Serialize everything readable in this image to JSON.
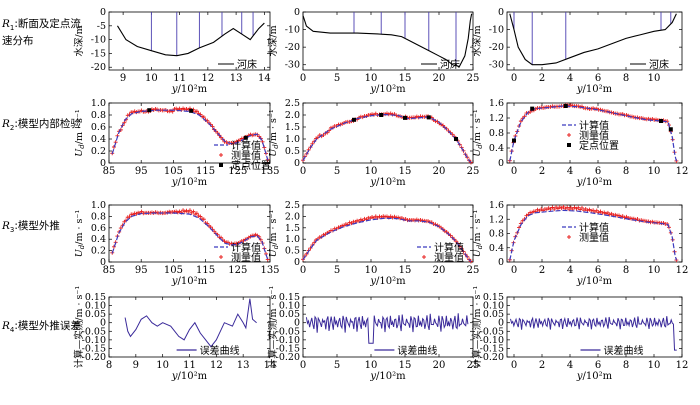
{
  "rows": [
    {
      "sym": "R",
      "sub": "1",
      "label": "断面及定点流速分布"
    },
    {
      "sym": "R",
      "sub": "2",
      "label": "模型内部检验"
    },
    {
      "sym": "R",
      "sub": "3",
      "label": "模型外推"
    },
    {
      "sym": "R",
      "sub": "4",
      "label": "模型外推误差"
    }
  ],
  "legend": {
    "riverbed": "河床",
    "calc": "计算值",
    "meas": "测量值",
    "station": "定点位置",
    "error": "误差曲线"
  },
  "axis_labels": {
    "x": "y/10²m",
    "depth": "水深/m",
    "velocity": "U_d/m · s⁻¹",
    "error": "计算—实测/m · s⁻¹"
  },
  "colors": {
    "calc_line": "#3b3bbf",
    "meas_marker": "#e8201f",
    "station_marker": "#000000",
    "riverbed_line": "#000000",
    "error_line": "#3a2a9a",
    "station_vline": "#4a3fb0"
  },
  "chart_data": [
    {
      "id": "r1c1",
      "type": "line",
      "role": "section",
      "ylabel": "水深/m",
      "xlabel": "y/10²m",
      "xlim": [
        8.5,
        14.2
      ],
      "ylim": [
        -21,
        0
      ],
      "xticks": [
        9,
        10,
        11,
        12,
        13,
        14
      ],
      "yticks": [
        -20,
        -15,
        -10,
        -5,
        0
      ],
      "legend": "河床",
      "bed": [
        [
          8.8,
          -5
        ],
        [
          9.1,
          -10
        ],
        [
          9.5,
          -12.5
        ],
        [
          10,
          -14
        ],
        [
          10.5,
          -15.5
        ],
        [
          10.9,
          -15.8
        ],
        [
          11.3,
          -15
        ],
        [
          11.7,
          -13
        ],
        [
          12.2,
          -11
        ],
        [
          12.6,
          -8
        ],
        [
          12.9,
          -6
        ],
        [
          13.2,
          -8
        ],
        [
          13.5,
          -10
        ],
        [
          13.8,
          -6
        ],
        [
          14,
          -4
        ]
      ],
      "stations": [
        10.0,
        10.9,
        11.7,
        12.5,
        13.2,
        13.6
      ]
    },
    {
      "id": "r1c2",
      "type": "line",
      "role": "section",
      "ylabel": "水深/m",
      "xlabel": "y/10²m",
      "xlim": [
        0,
        25
      ],
      "ylim": [
        -33,
        0
      ],
      "xticks": [
        0,
        5,
        10,
        15,
        20,
        25
      ],
      "yticks": [
        -30,
        -20,
        -10,
        0
      ],
      "legend": "河床",
      "bed": [
        [
          0,
          -2
        ],
        [
          0.5,
          -8
        ],
        [
          1.5,
          -11
        ],
        [
          4,
          -12
        ],
        [
          8,
          -12
        ],
        [
          11,
          -12.5
        ],
        [
          13,
          -13
        ],
        [
          14.5,
          -14
        ],
        [
          15.5,
          -16
        ],
        [
          16.5,
          -18
        ],
        [
          17.5,
          -20
        ],
        [
          18.5,
          -22
        ],
        [
          20,
          -25
        ],
        [
          21,
          -27
        ],
        [
          22,
          -30
        ],
        [
          23,
          -31
        ],
        [
          23.8,
          -25
        ],
        [
          24.3,
          -15
        ],
        [
          24.6,
          -5
        ],
        [
          24.8,
          -1
        ]
      ],
      "stations": [
        7.5,
        11.5,
        15.0,
        18.5,
        22.5
      ]
    },
    {
      "id": "r1c3",
      "type": "line",
      "role": "section",
      "ylabel": "水深/m",
      "xlabel": "y/10²m",
      "xlim": [
        -0.5,
        12
      ],
      "ylim": [
        -33,
        0
      ],
      "xticks": [
        0,
        2,
        4,
        6,
        8,
        10
      ],
      "yticks": [
        -30,
        -20,
        -10,
        0
      ],
      "legend": "河床",
      "bed": [
        [
          -0.3,
          -1
        ],
        [
          0,
          -10
        ],
        [
          0.3,
          -20
        ],
        [
          0.8,
          -27
        ],
        [
          1.3,
          -30
        ],
        [
          2,
          -30
        ],
        [
          3,
          -29
        ],
        [
          4,
          -26
        ],
        [
          5,
          -23
        ],
        [
          6,
          -21
        ],
        [
          7,
          -18
        ],
        [
          8,
          -15
        ],
        [
          9,
          -13
        ],
        [
          10,
          -11
        ],
        [
          10.8,
          -10
        ],
        [
          11.3,
          -6
        ],
        [
          11.6,
          -1
        ]
      ],
      "stations": [
        0.0,
        1.3,
        3.7,
        10.5,
        11.2
      ]
    },
    {
      "id": "r2c1",
      "type": "line",
      "role": "velocity",
      "ylabel": "U_d/m · s⁻¹",
      "xlabel": "y/10²m",
      "xlim": [
        85,
        135
      ],
      "ylim": [
        0,
        1.0
      ],
      "xticks": [
        85,
        95,
        105,
        115,
        125,
        135
      ],
      "yticks": [
        0,
        0.2,
        0.4,
        0.6,
        0.8,
        1.0
      ],
      "legend_items": [
        "计算值",
        "测量值",
        "定点位置"
      ],
      "calc": [
        [
          86,
          0.15
        ],
        [
          88,
          0.5
        ],
        [
          90,
          0.72
        ],
        [
          92,
          0.82
        ],
        [
          95,
          0.86
        ],
        [
          100,
          0.88
        ],
        [
          105,
          0.88
        ],
        [
          110,
          0.86
        ],
        [
          113,
          0.8
        ],
        [
          116,
          0.66
        ],
        [
          119,
          0.48
        ],
        [
          121,
          0.36
        ],
        [
          123,
          0.32
        ],
        [
          125,
          0.34
        ],
        [
          127,
          0.4
        ],
        [
          129,
          0.46
        ],
        [
          131,
          0.48
        ],
        [
          132.5,
          0.38
        ],
        [
          133.5,
          0.2
        ],
        [
          134.3,
          0.05
        ]
      ],
      "meas_offsets": [
        0.02,
        -0.02,
        0.03,
        0.01,
        -0.01,
        0.02,
        0.0,
        -0.02,
        0.03,
        0.04,
        0.05,
        0.03,
        0.02,
        0.0,
        -0.01,
        0.01,
        0.03,
        0.02,
        0.0,
        0.01
      ],
      "stations": [
        [
          97.5,
          0.88
        ],
        [
          110.5,
          0.87
        ],
        [
          127.5,
          0.42
        ]
      ]
    },
    {
      "id": "r2c2",
      "type": "line",
      "role": "velocity",
      "ylabel": "U_d/m · s⁻¹",
      "xlabel": "y/10²m",
      "xlim": [
        0,
        25
      ],
      "ylim": [
        0,
        2.5
      ],
      "xticks": [
        0,
        5,
        10,
        15,
        20,
        25
      ],
      "yticks": [
        0,
        0.5,
        1.0,
        1.5,
        2.0,
        2.5
      ],
      "legend_items": [],
      "calc": [
        [
          0,
          0.1
        ],
        [
          1,
          0.6
        ],
        [
          2,
          1.0
        ],
        [
          4,
          1.4
        ],
        [
          6,
          1.65
        ],
        [
          8,
          1.85
        ],
        [
          10,
          1.97
        ],
        [
          12,
          2.02
        ],
        [
          14,
          1.98
        ],
        [
          15.5,
          1.85
        ],
        [
          17,
          1.88
        ],
        [
          18.5,
          1.92
        ],
        [
          20,
          1.7
        ],
        [
          21.5,
          1.3
        ],
        [
          22.5,
          1.0
        ],
        [
          23.5,
          0.55
        ],
        [
          24.3,
          0.15
        ],
        [
          24.7,
          0.02
        ]
      ],
      "meas_offsets": [
        0.03,
        0.06,
        -0.04,
        0.05,
        0.02,
        -0.03,
        0.04,
        0.06,
        0.02,
        0.05,
        -0.02,
        0.04,
        0.05,
        0.03,
        -0.03,
        0.02,
        0.04,
        0.01
      ],
      "stations": [
        [
          7.5,
          1.8
        ],
        [
          11.5,
          2.0
        ],
        [
          15.0,
          1.88
        ],
        [
          18.5,
          1.9
        ],
        [
          22.5,
          1.0
        ]
      ]
    },
    {
      "id": "r2c3",
      "type": "line",
      "role": "velocity",
      "ylabel": "U_d/m · s⁻¹",
      "xlabel": "y/10²m",
      "xlim": [
        -0.5,
        12
      ],
      "ylim": [
        0,
        1.6
      ],
      "xticks": [
        0,
        2,
        4,
        6,
        8,
        10,
        12
      ],
      "yticks": [
        0,
        0.4,
        0.8,
        1.2,
        1.6
      ],
      "legend_items": [
        "计算值",
        "测量值",
        "定点位置"
      ],
      "calc": [
        [
          -0.3,
          0.05
        ],
        [
          0,
          0.6
        ],
        [
          0.5,
          1.1
        ],
        [
          1,
          1.35
        ],
        [
          1.5,
          1.45
        ],
        [
          2.5,
          1.48
        ],
        [
          3.5,
          1.52
        ],
        [
          4.5,
          1.5
        ],
        [
          5.5,
          1.45
        ],
        [
          6.5,
          1.38
        ],
        [
          7.5,
          1.3
        ],
        [
          8.5,
          1.22
        ],
        [
          9.5,
          1.15
        ],
        [
          10.5,
          1.12
        ],
        [
          11,
          1.1
        ],
        [
          11.3,
          0.7
        ],
        [
          11.5,
          0.2
        ],
        [
          11.6,
          0.05
        ]
      ],
      "meas_offsets": [
        0.02,
        0.03,
        -0.02,
        0.01,
        0.02,
        0.0,
        0.03,
        0.02,
        -0.01,
        0.02,
        0.01,
        0.0,
        0.02,
        0.01,
        0.02,
        0.03,
        0.02,
        0.01
      ],
      "stations": [
        [
          0.0,
          0.6
        ],
        [
          1.3,
          1.45
        ],
        [
          3.7,
          1.52
        ],
        [
          10.5,
          1.12
        ],
        [
          11.2,
          0.9
        ]
      ]
    },
    {
      "id": "r3c1",
      "type": "line",
      "role": "velocity",
      "ylabel": "U_d/m · s⁻¹",
      "xlabel": "y/10²m",
      "xlim": [
        85,
        135
      ],
      "ylim": [
        0,
        1.0
      ],
      "xticks": [
        85,
        95,
        105,
        115,
        125,
        135
      ],
      "yticks": [
        0,
        0.2,
        0.4,
        0.6,
        0.8,
        1.0
      ],
      "legend_items": [
        "计算值",
        "测量值"
      ],
      "calc": [
        [
          86,
          0.15
        ],
        [
          88,
          0.5
        ],
        [
          90,
          0.7
        ],
        [
          92,
          0.8
        ],
        [
          95,
          0.85
        ],
        [
          100,
          0.86
        ],
        [
          105,
          0.86
        ],
        [
          110,
          0.84
        ],
        [
          113,
          0.77
        ],
        [
          116,
          0.62
        ],
        [
          119,
          0.44
        ],
        [
          121,
          0.33
        ],
        [
          123,
          0.3
        ],
        [
          125,
          0.31
        ],
        [
          127,
          0.37
        ],
        [
          129,
          0.44
        ],
        [
          131,
          0.46
        ],
        [
          132.5,
          0.36
        ],
        [
          133.5,
          0.18
        ],
        [
          134.3,
          0.04
        ]
      ],
      "meas_offsets": [
        0.02,
        0.03,
        0.04,
        0.03,
        0.01,
        0.01,
        0.0,
        0.02,
        0.03,
        0.06,
        0.07,
        0.05,
        0.03,
        0.02,
        0.03,
        0.02,
        0.02,
        0.01,
        0.02,
        0.01
      ],
      "stations": []
    },
    {
      "id": "r3c2",
      "type": "line",
      "role": "velocity",
      "ylabel": "U_d/m · s⁻¹",
      "xlabel": "y/10²m",
      "xlim": [
        0,
        25
      ],
      "ylim": [
        0,
        2.5
      ],
      "xticks": [
        0,
        5,
        10,
        15,
        20,
        25
      ],
      "yticks": [
        0,
        0.5,
        1.0,
        1.5,
        2.0,
        2.5
      ],
      "legend_items": [
        "计算值",
        "测量值"
      ],
      "calc": [
        [
          0,
          0.1
        ],
        [
          1,
          0.55
        ],
        [
          2,
          0.95
        ],
        [
          4,
          1.3
        ],
        [
          6,
          1.55
        ],
        [
          8,
          1.72
        ],
        [
          10,
          1.85
        ],
        [
          12,
          1.92
        ],
        [
          14,
          1.9
        ],
        [
          15.5,
          1.8
        ],
        [
          17,
          1.8
        ],
        [
          18.5,
          1.75
        ],
        [
          20,
          1.55
        ],
        [
          21.5,
          1.2
        ],
        [
          22.5,
          0.9
        ],
        [
          23.5,
          0.5
        ],
        [
          24.3,
          0.15
        ],
        [
          24.7,
          0.02
        ]
      ],
      "meas_offsets": [
        0.03,
        0.05,
        0.06,
        0.07,
        0.08,
        0.1,
        0.1,
        0.12,
        0.1,
        0.08,
        0.06,
        0.05,
        0.05,
        0.04,
        0.03,
        0.02,
        0.02,
        0.01
      ],
      "stations": []
    },
    {
      "id": "r3c3",
      "type": "line",
      "role": "velocity",
      "ylabel": "U_d/m · s⁻¹",
      "xlabel": "y/10²m",
      "xlim": [
        -0.5,
        12
      ],
      "ylim": [
        0,
        1.6
      ],
      "xticks": [
        0,
        2,
        4,
        6,
        8,
        10,
        12
      ],
      "yticks": [
        0,
        0.4,
        0.8,
        1.2,
        1.6
      ],
      "legend_items": [
        "计算值",
        "测量值"
      ],
      "calc": [
        [
          -0.3,
          0.05
        ],
        [
          0,
          0.6
        ],
        [
          0.5,
          1.05
        ],
        [
          1,
          1.3
        ],
        [
          1.5,
          1.38
        ],
        [
          2.5,
          1.42
        ],
        [
          3.5,
          1.45
        ],
        [
          4.5,
          1.43
        ],
        [
          5.5,
          1.38
        ],
        [
          6.5,
          1.32
        ],
        [
          7.5,
          1.25
        ],
        [
          8.5,
          1.18
        ],
        [
          9.5,
          1.12
        ],
        [
          10.5,
          1.08
        ],
        [
          11,
          1.05
        ],
        [
          11.3,
          0.7
        ],
        [
          11.5,
          0.2
        ],
        [
          11.6,
          0.05
        ]
      ],
      "meas_offsets": [
        0.02,
        0.05,
        0.06,
        0.08,
        0.1,
        0.1,
        0.08,
        0.1,
        0.09,
        0.08,
        0.07,
        0.06,
        0.05,
        0.04,
        0.03,
        0.02,
        0.02,
        0.01
      ],
      "stations": []
    },
    {
      "id": "r4c1",
      "type": "line",
      "role": "error",
      "ylabel": "计算—实测/m · s⁻¹",
      "xlabel": "y/10²m",
      "xlim": [
        8,
        14
      ],
      "ylim": [
        -0.2,
        0.15
      ],
      "xticks": [
        8,
        9,
        10,
        11,
        12,
        13,
        14
      ],
      "yticks": [
        -0.2,
        -0.15,
        -0.1,
        -0.05,
        0,
        0.05,
        0.1,
        0.15
      ],
      "legend": "误差曲线",
      "error": [
        [
          8.6,
          0.03
        ],
        [
          8.7,
          -0.05
        ],
        [
          8.8,
          -0.08
        ],
        [
          9.0,
          -0.04
        ],
        [
          9.2,
          0.02
        ],
        [
          9.4,
          0.04
        ],
        [
          9.6,
          0.0
        ],
        [
          9.8,
          -0.02
        ],
        [
          10.0,
          0.0
        ],
        [
          10.3,
          -0.02
        ],
        [
          10.6,
          -0.08
        ],
        [
          10.8,
          -0.1
        ],
        [
          11.0,
          -0.04
        ],
        [
          11.2,
          0.0
        ],
        [
          11.4,
          -0.06
        ],
        [
          11.6,
          -0.1
        ],
        [
          11.8,
          -0.14
        ],
        [
          12.0,
          -0.1
        ],
        [
          12.3,
          0.0
        ],
        [
          12.6,
          -0.02
        ],
        [
          12.8,
          0.05
        ],
        [
          13.0,
          0.0
        ],
        [
          13.1,
          -0.03
        ],
        [
          13.25,
          0.14
        ],
        [
          13.35,
          0.02
        ],
        [
          13.5,
          0.0
        ]
      ]
    },
    {
      "id": "r4c2",
      "type": "line",
      "role": "error",
      "ylabel": "计算—实测/m · s⁻¹",
      "xlabel": "y/10²m",
      "xlim": [
        0,
        25
      ],
      "ylim": [
        -0.2,
        0.15
      ],
      "xticks": [
        0,
        5,
        10,
        15,
        20,
        25
      ],
      "yticks": [
        -0.2,
        -0.15,
        -0.1,
        -0.05,
        0,
        0.05,
        0.1,
        0.15
      ],
      "legend": "误差曲线",
      "error_amplitude": 0.05,
      "error_dip": [
        10.0,
        -0.12
      ]
    },
    {
      "id": "r4c3",
      "type": "line",
      "role": "error",
      "ylabel": "计算—实测/m · s⁻¹",
      "xlabel": "y/10²m",
      "xlim": [
        -0.5,
        12
      ],
      "ylim": [
        -0.2,
        0.15
      ],
      "xticks": [
        0,
        2,
        4,
        6,
        8,
        10,
        12
      ],
      "yticks": [
        -0.2,
        -0.15,
        -0.1,
        -0.05,
        0,
        0.05,
        0.1,
        0.15
      ],
      "legend": "误差曲线",
      "error_amplitude": 0.035,
      "error_dip": [
        11.6,
        -0.16
      ]
    }
  ]
}
